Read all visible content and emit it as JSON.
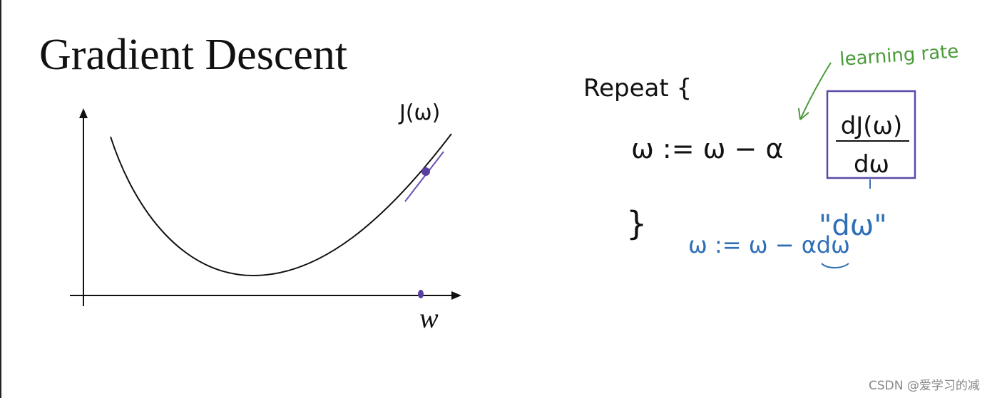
{
  "slide": {
    "title": "Gradient Descent",
    "graph": {
      "y_label": "J(ω)",
      "x_label": "w"
    },
    "update_rule": {
      "repeat": "Repeat {",
      "lhs": "ω := ω − α",
      "numerator": "dJ(ω)",
      "denominator": "dω",
      "close": "}"
    },
    "annotations": {
      "learning_rate": "learning rate",
      "dw_quote": "\"dω\"",
      "code_rule": "ω := ω − αdω"
    },
    "watermark": "CSDN @爱学习的减"
  }
}
